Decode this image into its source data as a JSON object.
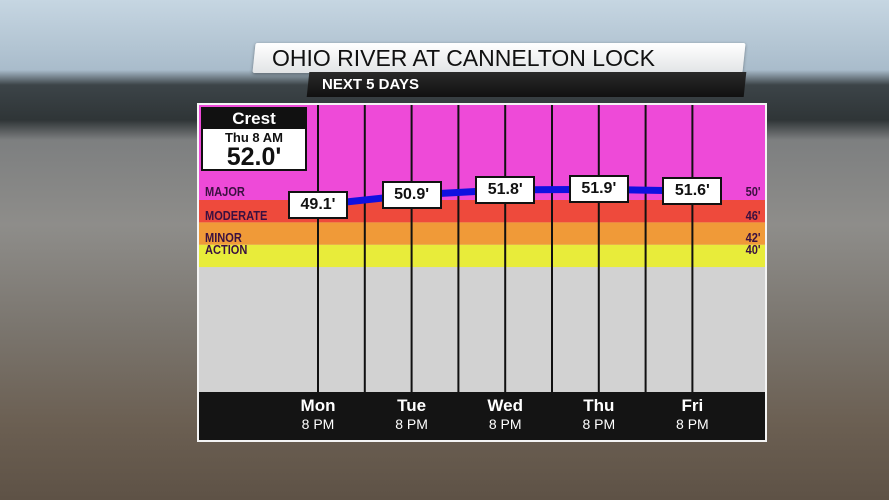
{
  "header": {
    "title": "OHIO RIVER AT CANNELTON LOCK",
    "subtitle": "NEXT 5 DAYS"
  },
  "crest": {
    "label": "Crest",
    "time": "Thu 8 AM",
    "value": "52.0'"
  },
  "chart_data": {
    "type": "line",
    "ylim": [
      36,
      67
    ],
    "unit": "ft",
    "line_color": "#1010e0",
    "stages": [
      {
        "name": "MAJOR",
        "value": 50,
        "label": "50'",
        "color": "#ee4ad8"
      },
      {
        "name": "MODERATE",
        "value": 46,
        "label": "46'",
        "color": "#ee4a3c"
      },
      {
        "name": "MINOR",
        "value": 42,
        "label": "42'",
        "color": "#f09a38"
      },
      {
        "name": "ACTION",
        "value": 40,
        "label": "40'",
        "color": "#e8ec3a"
      }
    ],
    "points": [
      {
        "day": "Mon",
        "time": "8 PM",
        "value": 49.1,
        "label": "49.1'"
      },
      {
        "day": "Tue",
        "time": "8 PM",
        "value": 50.9,
        "label": "50.9'"
      },
      {
        "day": "Wed",
        "time": "8 PM",
        "value": 51.8,
        "label": "51.8'"
      },
      {
        "day": "Thu",
        "time": "8 PM",
        "value": 51.9,
        "label": "51.9'"
      },
      {
        "day": "Fri",
        "time": "8 PM",
        "value": 51.6,
        "label": "51.6'"
      }
    ]
  }
}
